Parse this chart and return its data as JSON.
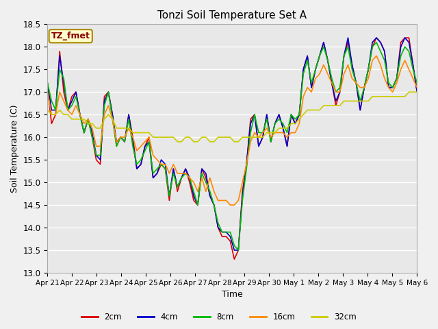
{
  "title": "Tonzi Soil Temperature Set A",
  "xlabel": "Time",
  "ylabel": "Soil Temperature (C)",
  "ylim": [
    13.0,
    18.5
  ],
  "fig_facecolor": "#f0f0f0",
  "plot_facecolor": "#e8e8e8",
  "legend_label": "TZ_fmet",
  "series_labels": [
    "2cm",
    "4cm",
    "8cm",
    "16cm",
    "32cm"
  ],
  "series_colors": [
    "#dd0000",
    "#0000cc",
    "#00bb00",
    "#ff8800",
    "#cccc00"
  ],
  "xtick_labels": [
    "Apr 21",
    "Apr 22",
    "Apr 23",
    "Apr 24",
    "Apr 25",
    "Apr 26",
    "Apr 27",
    "Apr 28",
    "Apr 29",
    "Apr 30",
    "May 1",
    "May 2",
    "May 3",
    "May 4",
    "May 5",
    "May 6"
  ],
  "data_2cm": [
    17.1,
    16.3,
    16.5,
    17.9,
    17.0,
    16.6,
    16.9,
    17.0,
    16.5,
    16.1,
    16.4,
    16.0,
    15.5,
    15.4,
    16.9,
    17.0,
    16.5,
    15.8,
    16.0,
    15.9,
    16.5,
    16.0,
    15.3,
    15.4,
    15.8,
    16.0,
    15.1,
    15.2,
    15.4,
    15.3,
    14.6,
    15.3,
    14.8,
    15.1,
    15.3,
    15.0,
    14.6,
    14.5,
    15.3,
    15.1,
    14.7,
    14.5,
    14.0,
    13.8,
    13.8,
    13.7,
    13.3,
    13.5,
    14.8,
    15.4,
    16.4,
    16.5,
    15.8,
    16.0,
    16.5,
    15.9,
    16.3,
    16.5,
    16.2,
    15.8,
    16.5,
    16.3,
    16.5,
    17.5,
    17.8,
    17.1,
    17.5,
    17.8,
    18.1,
    17.7,
    17.2,
    16.7,
    17.0,
    17.8,
    18.1,
    17.6,
    17.2,
    16.6,
    17.1,
    17.5,
    18.0,
    18.2,
    18.1,
    17.9,
    17.1,
    17.1,
    17.3,
    18.1,
    18.2,
    18.2,
    17.6,
    17.0
  ],
  "data_4cm": [
    17.2,
    16.6,
    16.6,
    17.8,
    17.2,
    16.6,
    16.8,
    17.0,
    16.5,
    16.1,
    16.4,
    16.1,
    15.6,
    15.5,
    16.8,
    17.0,
    16.5,
    15.9,
    16.0,
    15.9,
    16.5,
    15.9,
    15.3,
    15.4,
    15.8,
    15.9,
    15.1,
    15.2,
    15.5,
    15.4,
    14.7,
    15.3,
    14.9,
    15.1,
    15.3,
    15.1,
    14.7,
    14.5,
    15.3,
    15.2,
    14.7,
    14.5,
    14.0,
    13.9,
    13.9,
    13.8,
    13.5,
    13.5,
    14.7,
    15.4,
    16.3,
    16.5,
    15.8,
    16.0,
    16.5,
    15.9,
    16.3,
    16.5,
    16.2,
    15.8,
    16.5,
    16.3,
    16.5,
    17.5,
    17.8,
    17.1,
    17.5,
    17.8,
    18.1,
    17.7,
    17.2,
    16.8,
    17.0,
    17.8,
    18.2,
    17.6,
    17.2,
    16.6,
    17.1,
    17.5,
    18.1,
    18.2,
    18.1,
    17.9,
    17.1,
    17.1,
    17.3,
    18.0,
    18.2,
    18.1,
    17.6,
    17.0
  ],
  "data_8cm": [
    17.2,
    16.8,
    16.6,
    17.5,
    17.3,
    16.6,
    16.7,
    16.9,
    16.5,
    16.1,
    16.4,
    16.0,
    15.6,
    15.6,
    16.7,
    17.0,
    16.4,
    15.8,
    16.0,
    15.9,
    16.4,
    15.8,
    15.4,
    15.5,
    15.7,
    15.9,
    15.2,
    15.3,
    15.4,
    15.3,
    14.7,
    15.2,
    14.9,
    15.1,
    15.2,
    15.1,
    14.8,
    14.5,
    15.2,
    15.0,
    14.8,
    14.5,
    14.1,
    13.9,
    13.9,
    13.9,
    13.6,
    13.5,
    14.6,
    15.3,
    16.1,
    16.5,
    16.1,
    16.1,
    16.4,
    15.9,
    16.3,
    16.4,
    16.3,
    16.1,
    16.5,
    16.4,
    16.5,
    17.4,
    17.7,
    17.2,
    17.5,
    17.8,
    18.0,
    17.7,
    17.3,
    17.0,
    17.1,
    17.8,
    18.0,
    17.5,
    17.2,
    16.8,
    17.1,
    17.5,
    18.0,
    18.1,
    17.9,
    17.7,
    17.2,
    17.1,
    17.3,
    17.8,
    18.0,
    17.9,
    17.5,
    17.2
  ],
  "data_16cm": [
    17.0,
    16.5,
    16.5,
    17.0,
    16.8,
    16.6,
    16.5,
    16.7,
    16.5,
    16.3,
    16.4,
    16.2,
    15.8,
    15.8,
    16.5,
    16.7,
    16.4,
    15.9,
    16.0,
    16.0,
    16.2,
    16.0,
    15.7,
    15.8,
    15.9,
    16.0,
    15.6,
    15.5,
    15.4,
    15.4,
    15.2,
    15.4,
    15.2,
    15.2,
    15.2,
    15.1,
    15.0,
    14.8,
    15.1,
    14.8,
    15.1,
    14.8,
    14.6,
    14.6,
    14.6,
    14.5,
    14.5,
    14.6,
    15.0,
    15.4,
    15.9,
    16.1,
    16.0,
    16.1,
    16.2,
    16.0,
    16.1,
    16.1,
    16.1,
    16.0,
    16.1,
    16.1,
    16.3,
    16.9,
    17.1,
    17.0,
    17.3,
    17.4,
    17.6,
    17.4,
    17.2,
    17.0,
    17.0,
    17.4,
    17.6,
    17.3,
    17.2,
    17.1,
    17.1,
    17.3,
    17.7,
    17.8,
    17.6,
    17.3,
    17.1,
    17.0,
    17.2,
    17.5,
    17.7,
    17.5,
    17.3,
    17.1
  ],
  "data_32cm": [
    16.6,
    16.5,
    16.5,
    16.6,
    16.5,
    16.5,
    16.4,
    16.4,
    16.4,
    16.4,
    16.3,
    16.3,
    16.2,
    16.2,
    16.4,
    16.5,
    16.4,
    16.2,
    16.2,
    16.2,
    16.2,
    16.1,
    16.1,
    16.1,
    16.1,
    16.1,
    16.0,
    16.0,
    16.0,
    16.0,
    16.0,
    16.0,
    15.9,
    15.9,
    16.0,
    16.0,
    15.9,
    15.9,
    16.0,
    16.0,
    15.9,
    15.9,
    16.0,
    16.0,
    16.0,
    16.0,
    15.9,
    15.9,
    16.0,
    16.0,
    16.0,
    16.0,
    16.0,
    16.0,
    16.1,
    16.1,
    16.1,
    16.2,
    16.2,
    16.2,
    16.3,
    16.3,
    16.4,
    16.5,
    16.6,
    16.6,
    16.6,
    16.6,
    16.7,
    16.7,
    16.7,
    16.7,
    16.7,
    16.8,
    16.8,
    16.8,
    16.8,
    16.8,
    16.8,
    16.8,
    16.9,
    16.9,
    16.9,
    16.9,
    16.9,
    16.9,
    16.9,
    16.9,
    16.9,
    17.0,
    17.0,
    17.0
  ]
}
